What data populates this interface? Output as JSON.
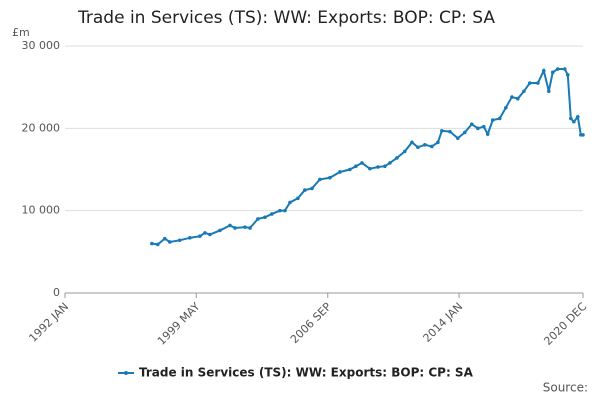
{
  "chart_data": {
    "type": "line",
    "title": "Trade in Services (TS): WW: Exports: BOP: CP: SA",
    "y_unit_label": "£m",
    "source_label": "Source:",
    "x": [
      1996.85,
      1997.18,
      1997.57,
      1997.85,
      1998.4,
      1998.97,
      1999.53,
      1999.81,
      2000.09,
      2000.65,
      2001.21,
      2001.49,
      2002.05,
      2002.33,
      2002.77,
      2003.16,
      2003.55,
      2004.0,
      2004.28,
      2004.56,
      2005.0,
      2005.39,
      2005.79,
      2006.23,
      2006.79,
      2007.35,
      2007.9,
      2008.24,
      2008.58,
      2009.02,
      2009.47,
      2009.86,
      2010.14,
      2010.53,
      2010.97,
      2011.37,
      2011.7,
      2012.09,
      2012.48,
      2012.82,
      2013.04,
      2013.49,
      2013.93,
      2014.32,
      2014.71,
      2015.05,
      2015.38,
      2015.6,
      2015.88,
      2016.27,
      2016.61,
      2016.95,
      2017.28,
      2017.62,
      2017.95,
      2018.4,
      2018.73,
      2019.01,
      2019.23,
      2019.51,
      2019.9,
      2020.07,
      2020.24,
      2020.41,
      2020.63,
      2020.8,
      2020.92
    ],
    "series": [
      {
        "name": "Trade in Services (TS): WW: Exports: BOP: CP: SA",
        "color": "#1a7ab5",
        "values": [
          6000,
          5900,
          6600,
          6200,
          6400,
          6700,
          6900,
          7300,
          7100,
          7600,
          8200,
          7900,
          8000,
          7900,
          9000,
          9200,
          9600,
          10000,
          10000,
          11000,
          11500,
          12500,
          12700,
          13800,
          14000,
          14700,
          15000,
          15400,
          15800,
          15100,
          15300,
          15400,
          15800,
          16400,
          17200,
          18300,
          17700,
          18000,
          17800,
          18300,
          19700,
          19600,
          18800,
          19500,
          20500,
          20000,
          20200,
          19300,
          21000,
          21200,
          22500,
          23800,
          23600,
          24500,
          25500,
          25500,
          27000,
          24500,
          26800,
          27200,
          27200,
          26500,
          21200,
          20800,
          21400,
          19200,
          19200
        ]
      }
    ],
    "xlim": [
      1992.0,
      2020.92
    ],
    "xticks": [
      {
        "value": 1992.0,
        "label": "1992 JAN"
      },
      {
        "value": 1999.33,
        "label": "1999 MAY"
      },
      {
        "value": 2006.67,
        "label": "2006 SEP"
      },
      {
        "value": 2014.0,
        "label": "2014 JAN"
      },
      {
        "value": 2020.92,
        "label": "2020 DEC"
      }
    ],
    "ylim": [
      0,
      30000
    ],
    "yticks": [
      0,
      {
        "value": 10000,
        "label": "10 000"
      },
      {
        "value": 20000,
        "label": "20 000"
      },
      {
        "value": 30000,
        "label": "30 000"
      }
    ],
    "grid": true,
    "legend": "bottom"
  }
}
